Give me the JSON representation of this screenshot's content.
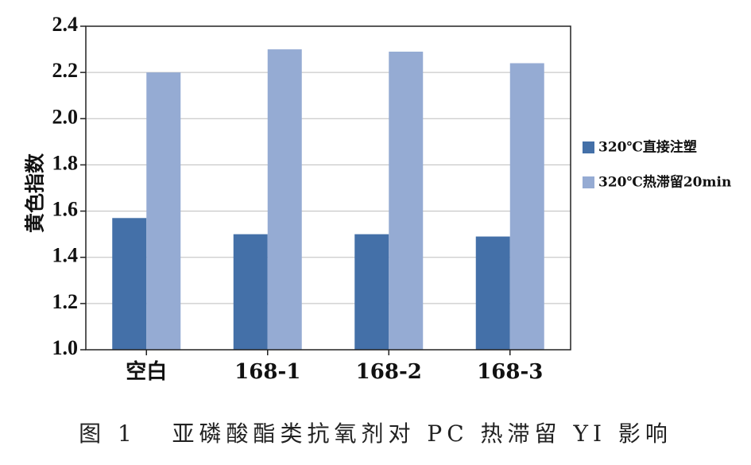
{
  "caption": "图 1   亚磷酸酯类抗氧剂对 PC 热滞留 YI 影响",
  "colors": {
    "series_dark": "#4470a8",
    "series_light": "#95abd3",
    "axis": "#222222",
    "grid": "#bdbdbd"
  },
  "chart_data": {
    "type": "bar",
    "title": "",
    "xlabel": "",
    "ylabel": "黄色指数",
    "ylim": [
      1.0,
      2.4
    ],
    "yticks": [
      "1.0",
      "1.2",
      "1.4",
      "1.6",
      "1.8",
      "2.0",
      "2.2",
      "2.4"
    ],
    "grid": true,
    "legend_position": "right",
    "categories": [
      "空白",
      "168-1",
      "168-2",
      "168-3"
    ],
    "series": [
      {
        "name": "320℃直接注塑",
        "values": [
          1.57,
          1.5,
          1.5,
          1.49
        ]
      },
      {
        "name": "320℃热滞留20min",
        "values": [
          2.2,
          2.3,
          2.29,
          2.24
        ]
      }
    ]
  }
}
